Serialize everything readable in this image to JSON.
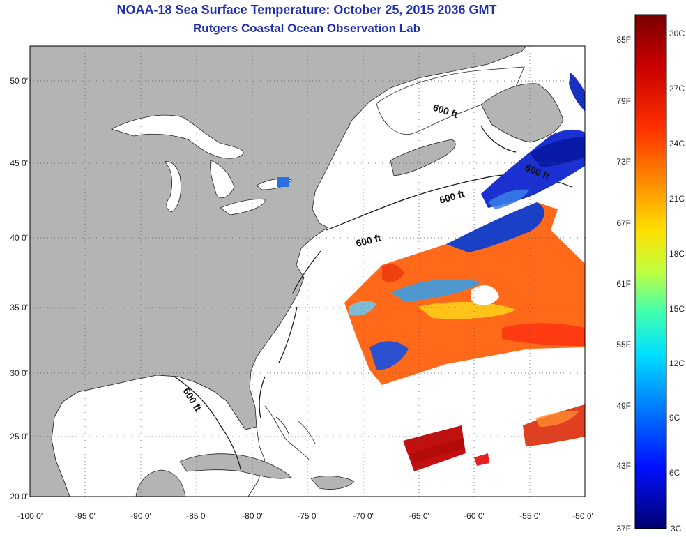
{
  "header": {
    "title": "NOAA-18 Sea Surface Temperature:  October 25, 2015 2036 GMT",
    "subtitle": "Rutgers Coastal Ocean Observation Lab"
  },
  "map": {
    "lon_range": [
      -100,
      -50
    ],
    "lat_range": [
      20,
      52.5
    ],
    "lon_ticks": [
      "-100 0'",
      "-95 0'",
      "-90 0'",
      "-85 0'",
      "-80 0'",
      "-75 0'",
      "-70 0'",
      "-65 0'",
      "-60 0'",
      "-55 0'",
      "-50 0'"
    ],
    "lat_ticks": [
      "20 0'",
      "25 0'",
      "30 0'",
      "35 0'",
      "40 0'",
      "45 0'",
      "50 0'"
    ],
    "contour_labels": [
      "600 ft",
      "600 ft",
      "600 ft",
      "600 ft",
      "600 ft"
    ],
    "land_color": "#b4b4b4",
    "ocean_color": "#ffffff"
  },
  "colorbar": {
    "celsius_labels": [
      "30C",
      "27C",
      "24C",
      "21C",
      "18C",
      "15C",
      "12C",
      "9C",
      "6C",
      "3C"
    ],
    "fahrenheit_labels": [
      "85F",
      "79F",
      "73F",
      "67F",
      "61F",
      "55F",
      "49F",
      "43F",
      "37F"
    ],
    "colors": [
      "#7a0000",
      "#ff0000",
      "#ff8000",
      "#ffff00",
      "#80ff80",
      "#00ffff",
      "#0080ff",
      "#0000ff",
      "#00008c"
    ]
  }
}
